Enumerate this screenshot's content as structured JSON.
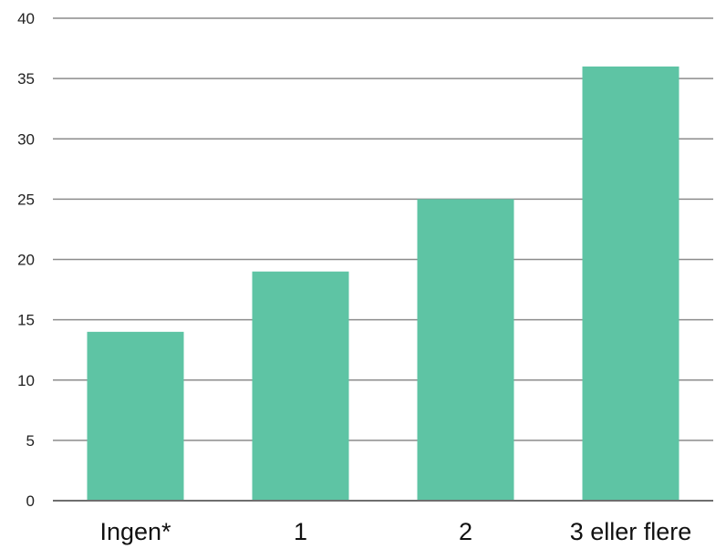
{
  "chart_data": {
    "type": "bar",
    "title": "",
    "xlabel": "",
    "ylabel": "",
    "categories": [
      "Ingen*",
      "1",
      "2",
      "3 eller flere"
    ],
    "values": [
      14,
      19,
      25,
      36
    ],
    "ylim": [
      0,
      40
    ],
    "yticks": [
      "0",
      "5",
      "10",
      "15",
      "20",
      "25",
      "30",
      "35",
      "40"
    ],
    "grid": true,
    "legend": "none",
    "bar_color": "#5ec4a4"
  }
}
